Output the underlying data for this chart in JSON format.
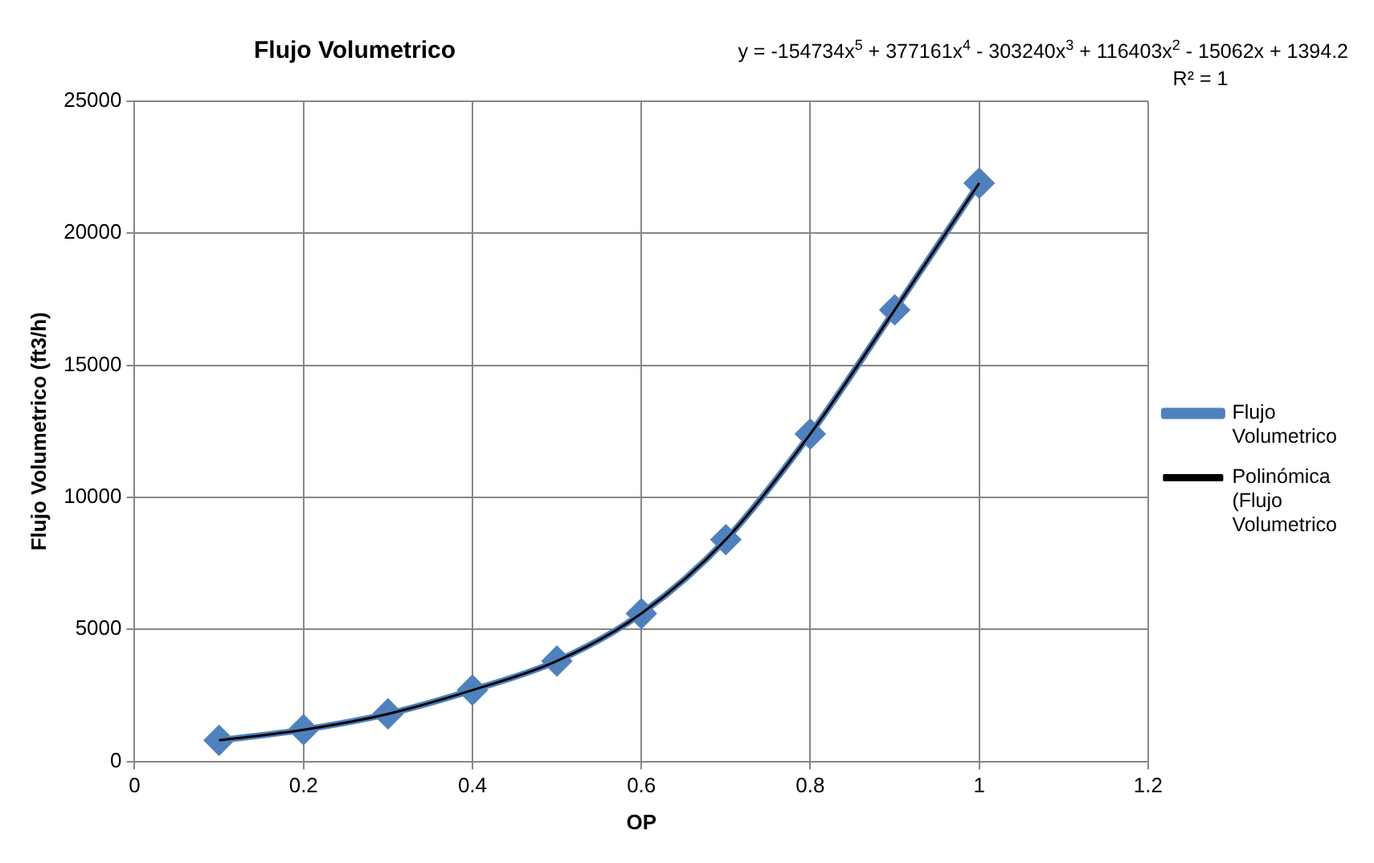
{
  "chart_data": {
    "type": "line",
    "title": "Flujo Volumetrico",
    "xlabel": "OP",
    "ylabel": "Flujo Volumetrico (ft3/h)",
    "annotations": [
      "y = -154734x$^{5}$ + 377161x$^{4}$ - 303240x$^{3}$ + 116403x$^{2}$ - 15062x + 1394.2",
      "R² = 1"
    ],
    "x": [
      0.1,
      0.2,
      0.3,
      0.4,
      0.5,
      0.6,
      0.7,
      0.8,
      0.9,
      1
    ],
    "series": [
      {
        "name": "Flujo Volumetrico",
        "color": "#4f81bd",
        "marker": "diamond",
        "values": [
          800,
          1200,
          1800,
          2700,
          3800,
          5600,
          8400,
          12400,
          17100,
          21900
        ]
      },
      {
        "name": "Polinómica (Flujo Volumetrico",
        "type": "line",
        "color": "#000000",
        "marker": "none",
        "x": [
          0.1,
          0.2,
          0.3,
          0.4,
          0.5,
          0.6,
          0.7,
          0.8,
          0.9,
          1
        ],
        "values": [
          800,
          1200,
          1800,
          2700,
          3800,
          5600,
          8400,
          12400,
          17100,
          21900
        ]
      }
    ],
    "xlim": [
      0,
      1.2
    ],
    "xticks": [
      0,
      0.2,
      0.4,
      0.6,
      0.8,
      1,
      1.2
    ],
    "ylim": [
      0,
      25000
    ],
    "yticks": [
      0,
      5000,
      10000,
      15000,
      20000,
      25000
    ],
    "grid": true,
    "legend": "right"
  }
}
